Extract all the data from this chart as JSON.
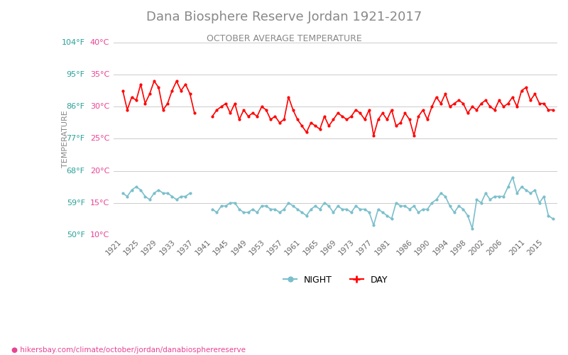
{
  "title": "Dana Biosphere Reserve Jordan 1921-2017",
  "subtitle": "OCTOBER AVERAGE TEMPERATURE",
  "ylabel": "TEMPERATURE",
  "xlabel_url": "hikersbay.com/climate/october/jordan/danabiospherereserve",
  "ylim": [
    10,
    40
  ],
  "yticks_c": [
    10,
    15,
    20,
    25,
    30,
    35,
    40
  ],
  "yticks_f": [
    50,
    59,
    68,
    77,
    86,
    95,
    104
  ],
  "title_color": "#888888",
  "subtitle_color": "#888888",
  "ylabel_color": "#888888",
  "ytick_c_color": "#e84393",
  "ytick_f_color": "#2aa198",
  "day_color": "#ff0000",
  "night_color": "#7bbfcc",
  "grid_color": "#cccccc",
  "bg_color": "#ffffff",
  "years": [
    1921,
    1922,
    1923,
    1924,
    1925,
    1926,
    1927,
    1928,
    1929,
    1930,
    1931,
    1932,
    1933,
    1934,
    1935,
    1936,
    1937,
    1938,
    1939,
    1940,
    1941,
    1942,
    1943,
    1944,
    1945,
    1946,
    1947,
    1948,
    1949,
    1950,
    1951,
    1952,
    1953,
    1954,
    1955,
    1956,
    1957,
    1958,
    1959,
    1960,
    1961,
    1962,
    1963,
    1964,
    1965,
    1966,
    1967,
    1968,
    1969,
    1970,
    1971,
    1972,
    1973,
    1974,
    1975,
    1976,
    1977,
    1978,
    1979,
    1980,
    1981,
    1982,
    1983,
    1984,
    1985,
    1986,
    1987,
    1988,
    1989,
    1990,
    1991,
    1992,
    1993,
    1994,
    1995,
    1996,
    1997,
    1998,
    1999,
    2000,
    2001,
    2002,
    2003,
    2004,
    2005,
    2006,
    2007,
    2008,
    2009,
    2010,
    2011,
    2012,
    2013,
    2014,
    2015,
    2016,
    2017
  ],
  "day_temps": [
    32.5,
    29.5,
    31.5,
    31.0,
    33.5,
    30.5,
    32.0,
    34.0,
    33.0,
    29.5,
    30.5,
    32.5,
    34.0,
    32.5,
    33.5,
    32.0,
    29.0,
    null,
    null,
    null,
    28.5,
    29.5,
    30.0,
    30.5,
    29.0,
    30.5,
    28.0,
    29.5,
    28.5,
    29.0,
    28.5,
    30.0,
    29.5,
    28.0,
    28.5,
    27.5,
    28.0,
    31.5,
    29.5,
    28.0,
    27.0,
    26.0,
    27.5,
    27.0,
    26.5,
    28.5,
    27.0,
    28.0,
    29.0,
    28.5,
    28.0,
    28.5,
    29.5,
    29.0,
    28.0,
    29.5,
    25.5,
    28.0,
    29.0,
    28.0,
    29.5,
    27.0,
    27.5,
    29.0,
    28.0,
    25.5,
    28.5,
    29.5,
    28.0,
    30.0,
    31.5,
    30.5,
    32.0,
    30.0,
    30.5,
    31.0,
    30.5,
    29.0,
    30.0,
    29.5,
    30.5,
    31.0,
    30.0,
    29.5,
    31.0,
    30.0,
    30.5,
    31.5,
    30.0,
    32.5,
    33.0,
    31.0,
    32.0,
    30.5,
    30.5,
    29.5,
    29.5
  ],
  "night_temps": [
    16.5,
    16.0,
    17.0,
    17.5,
    17.0,
    16.0,
    15.5,
    16.5,
    17.0,
    16.5,
    16.5,
    16.0,
    15.5,
    16.0,
    16.0,
    16.5,
    null,
    null,
    null,
    null,
    14.0,
    13.5,
    14.5,
    14.5,
    15.0,
    15.0,
    14.0,
    13.5,
    13.5,
    14.0,
    13.5,
    14.5,
    14.5,
    14.0,
    14.0,
    13.5,
    14.0,
    15.0,
    14.5,
    14.0,
    13.5,
    13.0,
    14.0,
    14.5,
    14.0,
    15.0,
    14.5,
    13.5,
    14.5,
    14.0,
    14.0,
    13.5,
    14.5,
    14.0,
    14.0,
    13.5,
    11.5,
    14.0,
    13.5,
    13.0,
    12.5,
    15.0,
    14.5,
    14.5,
    14.0,
    14.5,
    13.5,
    14.0,
    14.0,
    15.0,
    15.5,
    16.5,
    16.0,
    14.5,
    13.5,
    14.5,
    14.0,
    13.0,
    11.0,
    15.5,
    15.0,
    16.5,
    15.5,
    16.0,
    16.0,
    16.0,
    17.5,
    19.0,
    16.5,
    17.5,
    17.0,
    16.5,
    17.0,
    15.0,
    16.0,
    13.0,
    12.5
  ],
  "xtick_years": [
    1921,
    1925,
    1929,
    1933,
    1937,
    1941,
    1945,
    1949,
    1953,
    1957,
    1961,
    1965,
    1969,
    1973,
    1977,
    1981,
    1986,
    1990,
    1994,
    1998,
    2002,
    2006,
    2011,
    2015
  ]
}
